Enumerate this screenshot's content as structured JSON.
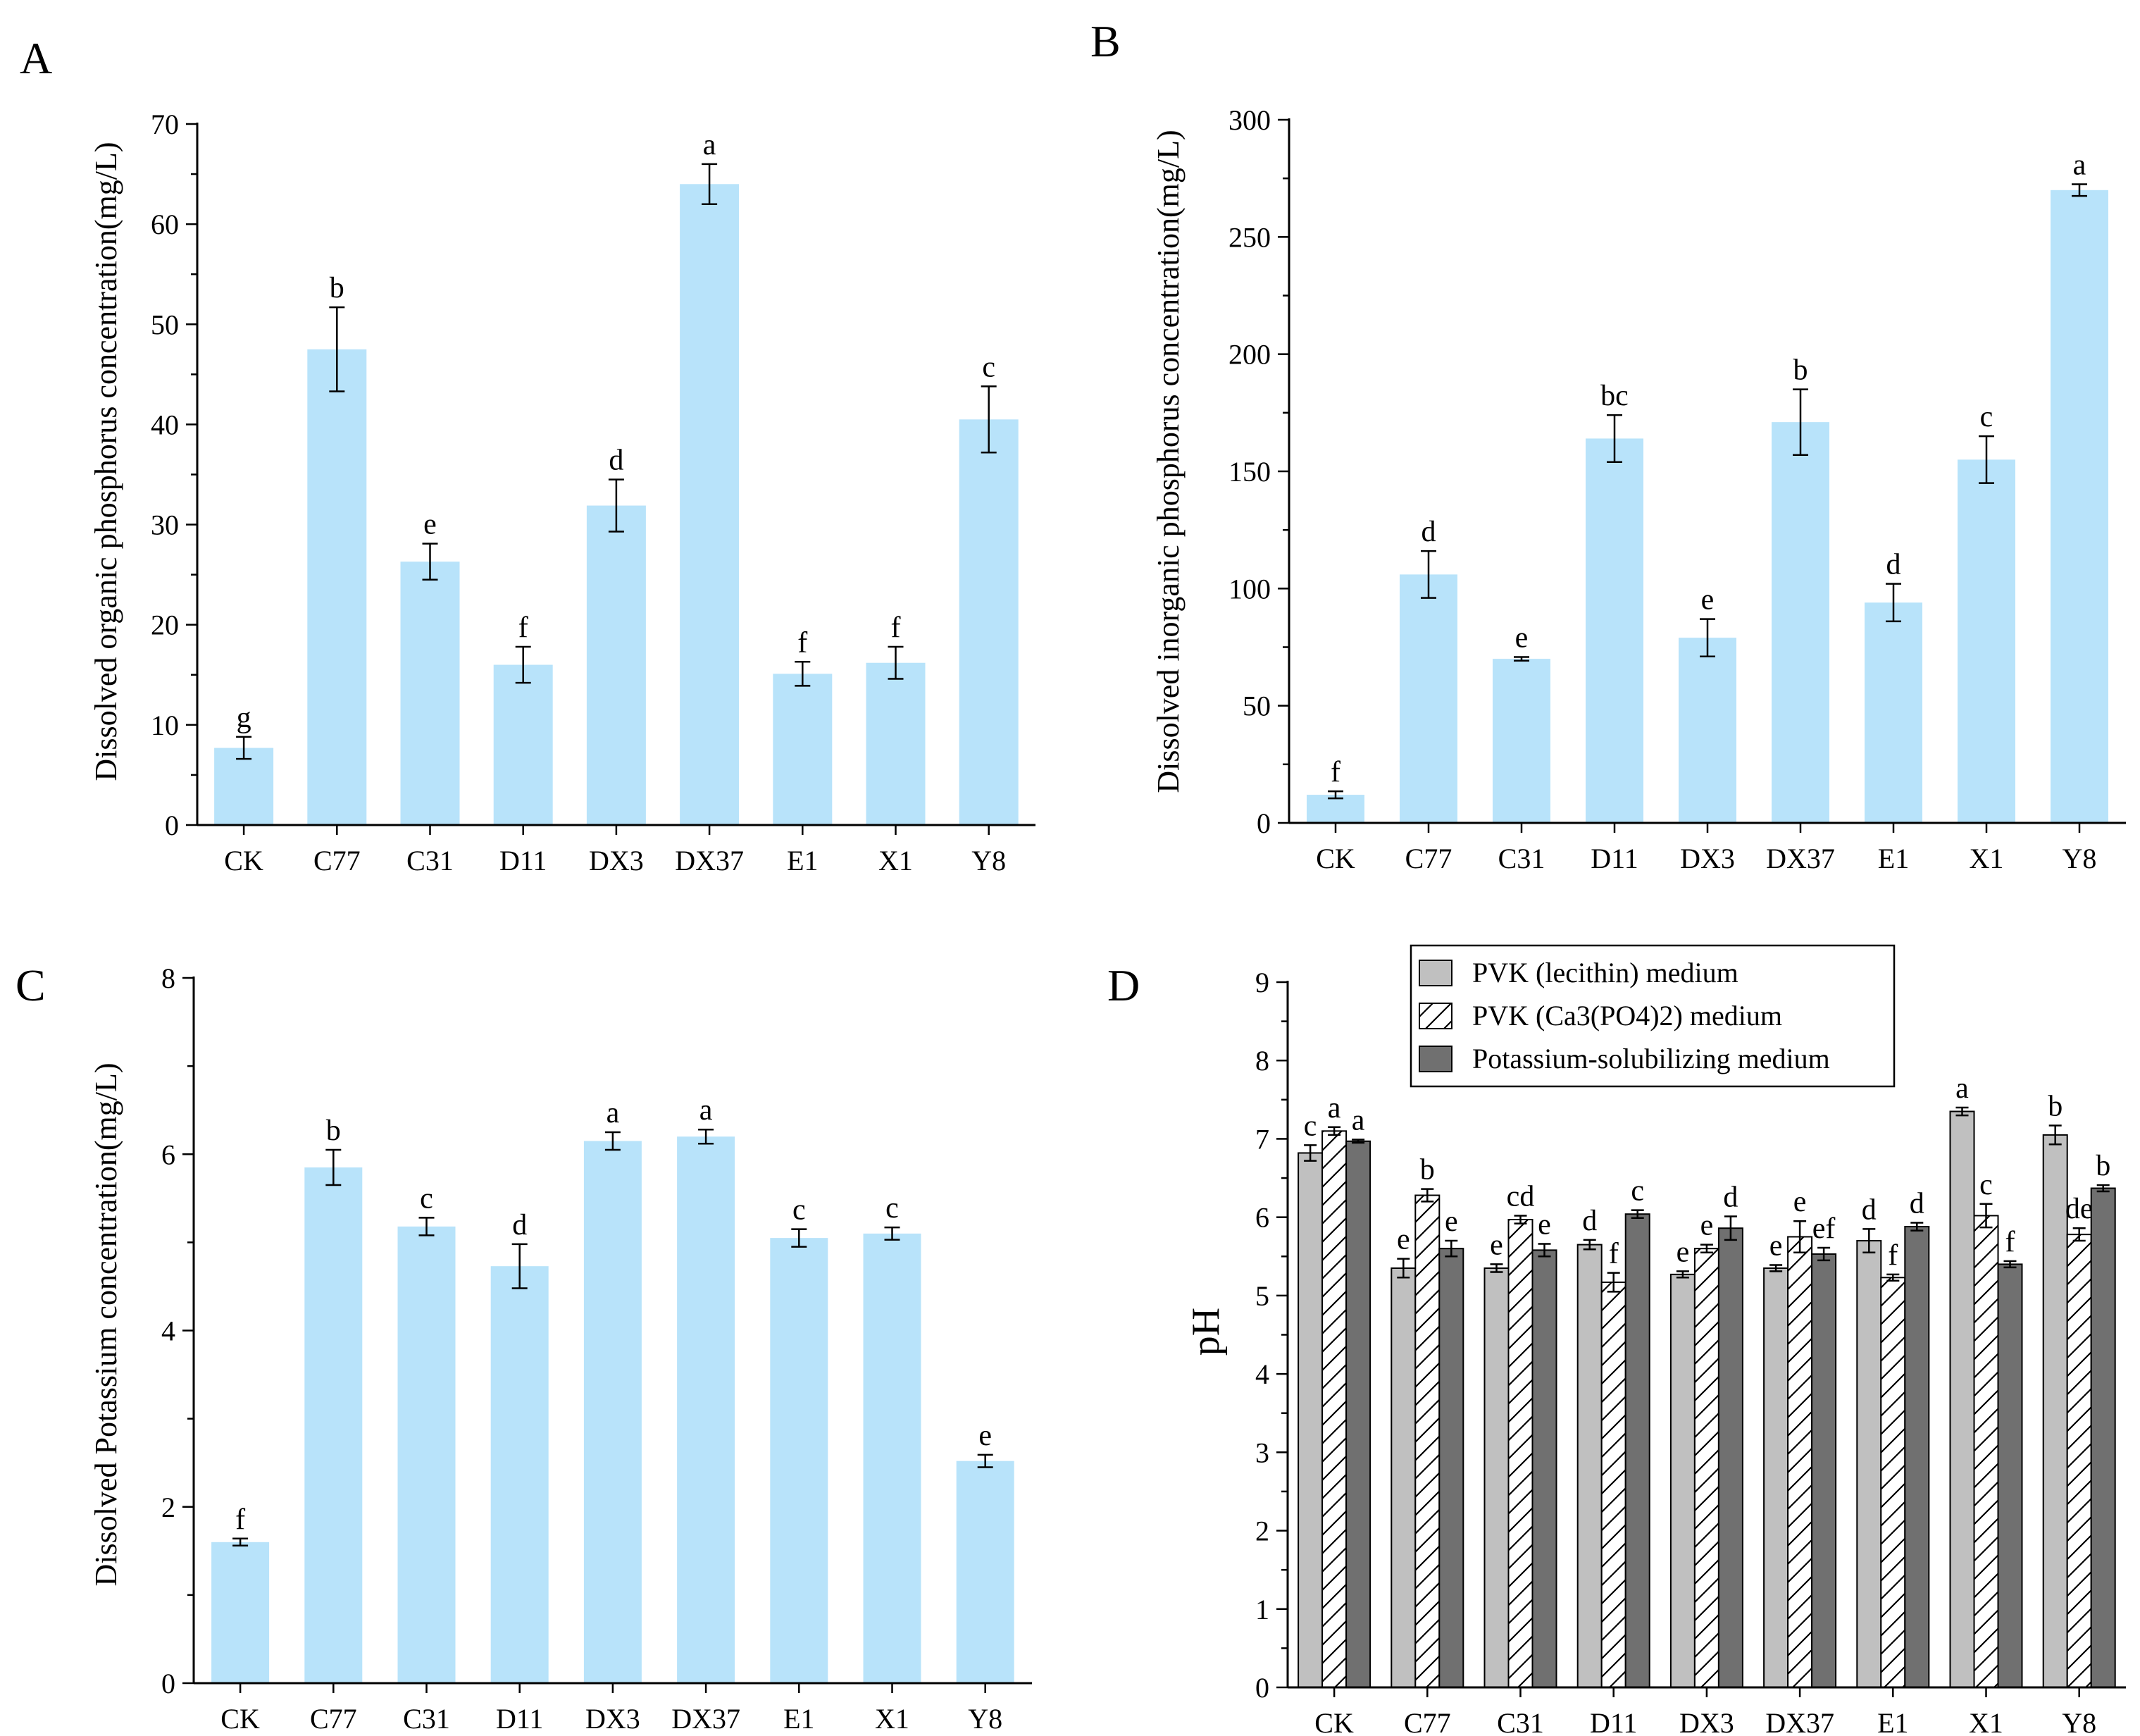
{
  "colors": {
    "light_blue_bar": "#b8e3fa",
    "series_lecithin": "#c0c0c0",
    "series_ca3po4": "#ffffff",
    "series_potassium": "#707070",
    "axis": "#000000"
  },
  "chart_data": [
    {
      "id": "A",
      "panel_label": "A",
      "type": "bar",
      "title": "",
      "xlabel": "",
      "ylabel": "Dissolved organic phosphorus concentration(mg/L)",
      "ylim": [
        0,
        70
      ],
      "yticks": [
        0,
        10,
        20,
        30,
        40,
        50,
        60,
        70
      ],
      "categories": [
        "CK",
        "C77",
        "C31",
        "D11",
        "DX3",
        "DX37",
        "E1",
        "X1",
        "Y8"
      ],
      "series": [
        {
          "name": "Dissolved organic phosphorus",
          "values": [
            7.7,
            47.5,
            26.3,
            16.0,
            31.9,
            64.0,
            15.1,
            16.2,
            40.5
          ],
          "errors": [
            1.1,
            4.2,
            1.8,
            1.8,
            2.6,
            2.0,
            1.2,
            1.6,
            3.3
          ],
          "labels": [
            "g",
            "b",
            "e",
            "f",
            "d",
            "a",
            "f",
            "f",
            "c"
          ]
        }
      ]
    },
    {
      "id": "B",
      "panel_label": "B",
      "type": "bar",
      "title": "",
      "xlabel": "",
      "ylabel": "Dissolved inorganic phosphorus concentration(mg/L)",
      "ylim": [
        0,
        300
      ],
      "yticks": [
        0,
        50,
        100,
        150,
        200,
        250,
        300
      ],
      "categories": [
        "CK",
        "C77",
        "C31",
        "D11",
        "DX3",
        "DX37",
        "E1",
        "X1",
        "Y8"
      ],
      "series": [
        {
          "name": "Dissolved inorganic phosphorus",
          "values": [
            12,
            106,
            70,
            164,
            79,
            171,
            94,
            155,
            270
          ],
          "errors": [
            1.5,
            10,
            0.8,
            10,
            8,
            14,
            8,
            10,
            2.5
          ],
          "labels": [
            "f",
            "d",
            "e",
            "bc",
            "e",
            "b",
            "d",
            "c",
            "a"
          ]
        }
      ]
    },
    {
      "id": "C",
      "panel_label": "C",
      "type": "bar",
      "title": "",
      "xlabel": "",
      "ylabel": "Dissolved Potassium concentration(mg/L)",
      "ylim": [
        0,
        8
      ],
      "yticks": [
        0,
        2,
        4,
        6,
        8
      ],
      "categories": [
        "CK",
        "C77",
        "C31",
        "D11",
        "DX3",
        "DX37",
        "E1",
        "X1",
        "Y8"
      ],
      "series": [
        {
          "name": "Dissolved Potassium",
          "values": [
            1.6,
            5.85,
            5.18,
            4.73,
            6.15,
            6.2,
            5.05,
            5.1,
            2.52
          ],
          "errors": [
            0.04,
            0.2,
            0.1,
            0.25,
            0.1,
            0.08,
            0.1,
            0.07,
            0.07
          ],
          "labels": [
            "f",
            "b",
            "c",
            "d",
            "a",
            "a",
            "c",
            "c",
            "e"
          ]
        }
      ]
    },
    {
      "id": "D",
      "panel_label": "D",
      "type": "bar",
      "title": "",
      "xlabel": "",
      "ylabel": "pH",
      "ylim": [
        0,
        9
      ],
      "yticks": [
        0,
        1,
        2,
        3,
        4,
        5,
        6,
        7,
        8,
        9
      ],
      "legend_position": "top-center",
      "categories": [
        "CK",
        "C77",
        "C31",
        "D11",
        "DX3",
        "DX37",
        "E1",
        "X1",
        "Y8"
      ],
      "series": [
        {
          "name": "PVK (lecithin) medium",
          "values": [
            6.82,
            5.35,
            5.35,
            5.65,
            5.27,
            5.35,
            5.7,
            7.35,
            7.05
          ],
          "errors": [
            0.1,
            0.12,
            0.05,
            0.06,
            0.04,
            0.04,
            0.15,
            0.05,
            0.12
          ],
          "labels": [
            "c",
            "e",
            "e",
            "d",
            "e",
            "e",
            "d",
            "a",
            "b"
          ]
        },
        {
          "name": "PVK (Ca3(PO4)2) medium",
          "values": [
            7.1,
            6.28,
            5.97,
            5.17,
            5.6,
            5.75,
            5.23,
            6.02,
            5.78
          ],
          "errors": [
            0.05,
            0.08,
            0.05,
            0.12,
            0.05,
            0.2,
            0.04,
            0.15,
            0.08
          ],
          "labels": [
            "a",
            "b",
            "cd",
            "f",
            "e",
            "e",
            "f",
            "c",
            "de"
          ]
        },
        {
          "name": "Potassium-solubilizing medium",
          "values": [
            6.97,
            5.6,
            5.58,
            6.04,
            5.86,
            5.53,
            5.88,
            5.4,
            6.37
          ],
          "errors": [
            0.02,
            0.1,
            0.08,
            0.05,
            0.15,
            0.08,
            0.05,
            0.04,
            0.04
          ],
          "labels": [
            "a",
            "e",
            "e",
            "c",
            "d",
            "ef",
            "d",
            "f",
            "b"
          ]
        }
      ]
    }
  ]
}
